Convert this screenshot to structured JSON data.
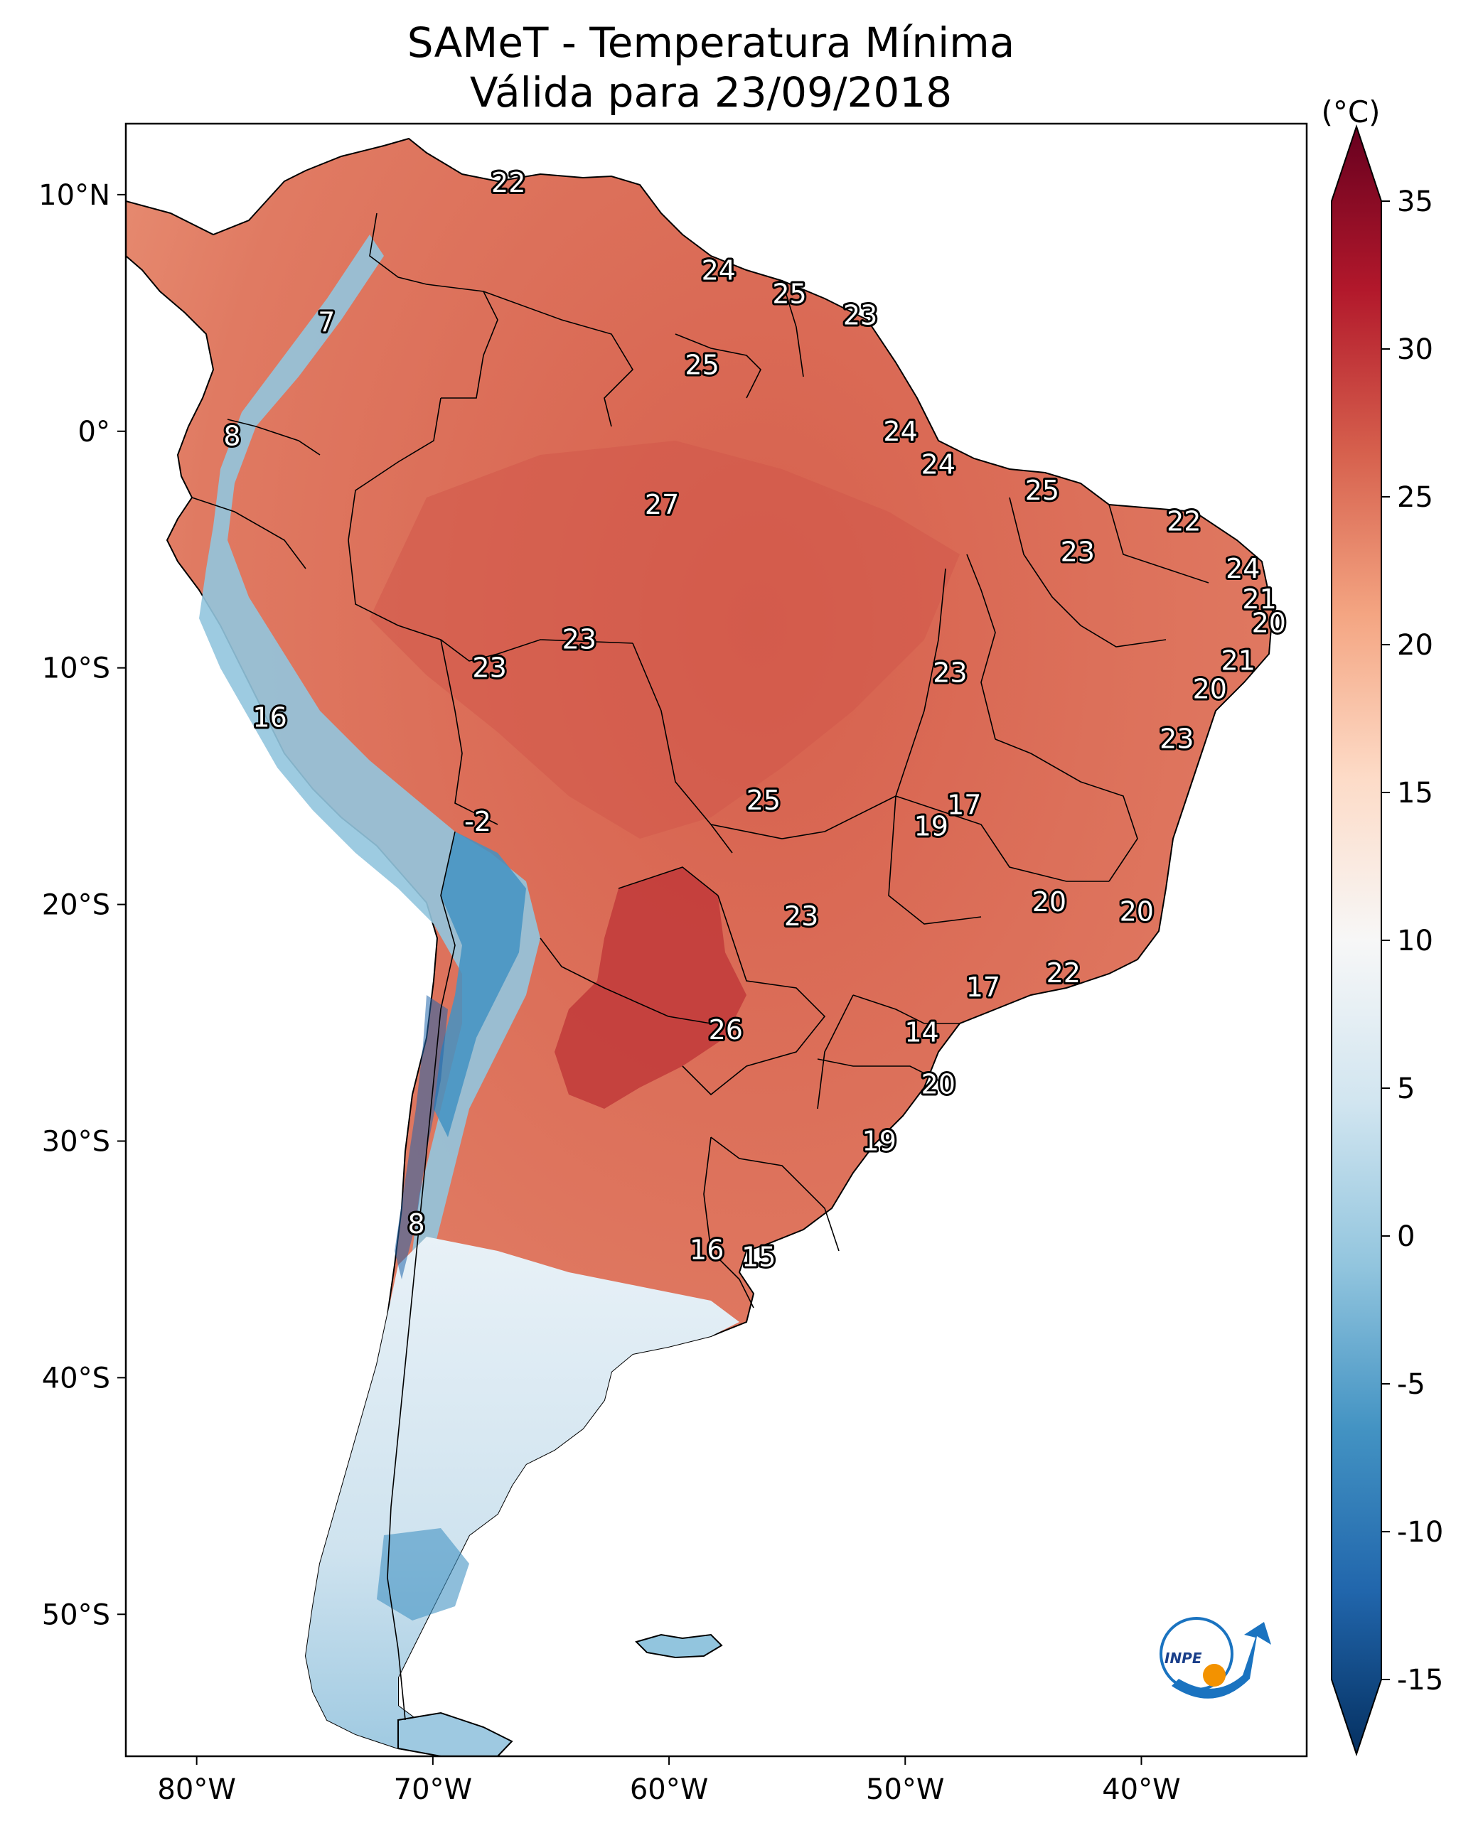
{
  "title": {
    "line1": "SAMeT - Temperatura Mínima",
    "line2": "Válida para 23/09/2018"
  },
  "map": {
    "lon_range": [
      -83,
      -33
    ],
    "lat_range": [
      -56,
      13
    ],
    "x_ticks": [
      {
        "lon": -80,
        "label": "80°W"
      },
      {
        "lon": -70,
        "label": "70°W"
      },
      {
        "lon": -60,
        "label": "60°W"
      },
      {
        "lon": -50,
        "label": "50°W"
      },
      {
        "lon": -40,
        "label": "40°W"
      }
    ],
    "y_ticks": [
      {
        "lat": 10,
        "label": "10°N"
      },
      {
        "lat": 0,
        "label": "0°"
      },
      {
        "lat": -10,
        "label": "10°S"
      },
      {
        "lat": -20,
        "label": "20°S"
      },
      {
        "lat": -30,
        "label": "30°S"
      },
      {
        "lat": -40,
        "label": "40°S"
      },
      {
        "lat": -50,
        "label": "50°S"
      }
    ],
    "stations": [
      {
        "lon": -66.8,
        "lat": 10.5,
        "value": "22"
      },
      {
        "lon": -74.5,
        "lat": 4.6,
        "value": "7"
      },
      {
        "lon": -78.5,
        "lat": -0.2,
        "value": "8"
      },
      {
        "lon": -57.9,
        "lat": 6.8,
        "value": "24"
      },
      {
        "lon": -54.9,
        "lat": 5.8,
        "value": "25"
      },
      {
        "lon": -51.9,
        "lat": 4.9,
        "value": "23"
      },
      {
        "lon": -58.6,
        "lat": 2.8,
        "value": "25"
      },
      {
        "lon": -50.2,
        "lat": 0.0,
        "value": "24"
      },
      {
        "lon": -48.6,
        "lat": -1.4,
        "value": "24"
      },
      {
        "lon": -60.3,
        "lat": -3.1,
        "value": "27"
      },
      {
        "lon": -44.2,
        "lat": -2.5,
        "value": "25"
      },
      {
        "lon": -38.2,
        "lat": -3.8,
        "value": "22"
      },
      {
        "lon": -42.7,
        "lat": -5.1,
        "value": "23"
      },
      {
        "lon": -35.7,
        "lat": -5.8,
        "value": "24"
      },
      {
        "lon": -35.0,
        "lat": -7.1,
        "value": "21"
      },
      {
        "lon": -34.6,
        "lat": -8.1,
        "value": "20"
      },
      {
        "lon": -63.8,
        "lat": -8.8,
        "value": "23"
      },
      {
        "lon": -67.6,
        "lat": -10.0,
        "value": "23"
      },
      {
        "lon": -48.1,
        "lat": -10.2,
        "value": "23"
      },
      {
        "lon": -35.9,
        "lat": -9.7,
        "value": "21"
      },
      {
        "lon": -37.1,
        "lat": -10.9,
        "value": "20"
      },
      {
        "lon": -38.5,
        "lat": -13.0,
        "value": "23"
      },
      {
        "lon": -76.9,
        "lat": -12.1,
        "value": "16"
      },
      {
        "lon": -56.0,
        "lat": -15.6,
        "value": "25"
      },
      {
        "lon": -47.5,
        "lat": -15.8,
        "value": "17"
      },
      {
        "lon": -48.9,
        "lat": -16.7,
        "value": "19"
      },
      {
        "lon": -68.1,
        "lat": -16.5,
        "value": "-2"
      },
      {
        "lon": -54.4,
        "lat": -20.5,
        "value": "23"
      },
      {
        "lon": -43.9,
        "lat": -19.9,
        "value": "20"
      },
      {
        "lon": -40.2,
        "lat": -20.3,
        "value": "20"
      },
      {
        "lon": -43.3,
        "lat": -22.9,
        "value": "22"
      },
      {
        "lon": -46.7,
        "lat": -23.5,
        "value": "17"
      },
      {
        "lon": -57.6,
        "lat": -25.3,
        "value": "26"
      },
      {
        "lon": -49.3,
        "lat": -25.4,
        "value": "14"
      },
      {
        "lon": -48.6,
        "lat": -27.6,
        "value": "20"
      },
      {
        "lon": -51.1,
        "lat": -30.0,
        "value": "19"
      },
      {
        "lon": -70.7,
        "lat": -33.5,
        "value": "8"
      },
      {
        "lon": -58.4,
        "lat": -34.6,
        "value": "16"
      },
      {
        "lon": -56.2,
        "lat": -34.9,
        "value": "15"
      }
    ]
  },
  "colorbar": {
    "unit": "(°C)",
    "min": -15,
    "max": 35,
    "ticks": [
      {
        "value": 35,
        "label": "35"
      },
      {
        "value": 30,
        "label": "30"
      },
      {
        "value": 25,
        "label": "25"
      },
      {
        "value": 20,
        "label": "20"
      },
      {
        "value": 15,
        "label": "15"
      },
      {
        "value": 10,
        "label": "10"
      },
      {
        "value": 5,
        "label": "5"
      },
      {
        "value": 0,
        "label": "0"
      },
      {
        "value": -5,
        "label": "-5"
      },
      {
        "value": -10,
        "label": "-10"
      },
      {
        "value": -15,
        "label": "-15"
      }
    ],
    "colors": [
      "#053061",
      "#2166ac",
      "#4393c3",
      "#92c5de",
      "#d1e5f0",
      "#f7f7f7",
      "#fddbc7",
      "#f4a582",
      "#d6604d",
      "#b2182b",
      "#67001f"
    ]
  },
  "logo": {
    "text": "INPE",
    "colors": {
      "blue": "#1a73c0",
      "orange": "#f39200"
    }
  }
}
